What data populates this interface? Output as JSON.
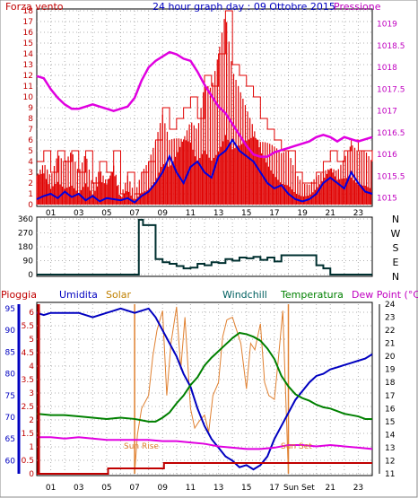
{
  "header": {
    "title": "24 hour graph day : 09 Ottobre 2015",
    "left_label": "Forza vento",
    "right_label": "Pressione"
  },
  "colors": {
    "wind": "#e00000",
    "gust": "#e00000",
    "wind_avg": "#0000e0",
    "pressure": "#e000e0",
    "direction": "#003030",
    "humidity": "#0000c0",
    "solar": "#e08030",
    "windchill": "#006060",
    "temperature": "#008000",
    "dew_point": "#e000e0",
    "rain": "#c00000",
    "axis_red": "#c00000",
    "axis_blue": "#0000c0",
    "axis_magenta": "#c000c0",
    "sun_marker": "#e08030"
  },
  "hours": [
    "01",
    "03",
    "05",
    "07",
    "09",
    "11",
    "13",
    "15",
    "17",
    "19",
    "21",
    "23"
  ],
  "chart_data": [
    {
      "type": "line",
      "panel": "wind_pressure",
      "x_range": [
        0,
        24
      ],
      "left_axis": {
        "label": "Forza vento",
        "ticks": [
          "0",
          "1",
          "2",
          "3",
          "4",
          "5",
          "6",
          "7",
          "8",
          "9",
          "10",
          "11",
          "12",
          "13",
          "14",
          "15",
          "16",
          "17",
          "18"
        ],
        "ylim": [
          0,
          18
        ]
      },
      "right_axis": {
        "label": "Pressione",
        "ticks": [
          "1015",
          "1015.5",
          "1016",
          "1016.5",
          "1017",
          "1017.5",
          "1018",
          "1018.5",
          "1019"
        ],
        "ylim": [
          1014.85,
          1019.3
        ]
      },
      "series": [
        {
          "key": "pressure",
          "x": [
            0,
            0.5,
            1,
            1.5,
            2,
            2.5,
            3,
            3.5,
            4,
            4.5,
            5,
            5.5,
            6,
            6.5,
            7,
            7.5,
            8,
            8.5,
            9,
            9.5,
            10,
            10.5,
            11,
            11.5,
            12,
            12.5,
            13,
            13.5,
            14,
            14.5,
            15,
            15.5,
            16,
            16.5,
            17,
            17.5,
            18,
            18.5,
            19,
            19.5,
            20,
            20.5,
            21,
            21.5,
            22,
            22.5,
            23,
            23.5,
            24
          ],
          "values": [
            1017.8,
            1017.75,
            1017.5,
            1017.3,
            1017.15,
            1017.05,
            1017.05,
            1017.1,
            1017.15,
            1017.1,
            1017.05,
            1017.0,
            1017.05,
            1017.1,
            1017.3,
            1017.7,
            1018.0,
            1018.15,
            1018.25,
            1018.35,
            1018.3,
            1018.2,
            1018.15,
            1017.9,
            1017.6,
            1017.35,
            1017.1,
            1016.95,
            1016.7,
            1016.45,
            1016.2,
            1016.0,
            1015.95,
            1015.95,
            1016.05,
            1016.1,
            1016.15,
            1016.2,
            1016.25,
            1016.3,
            1016.4,
            1016.45,
            1016.4,
            1016.3,
            1016.4,
            1016.35,
            1016.3,
            1016.35,
            1016.4
          ]
        },
        {
          "key": "wind_avg",
          "x": [
            0,
            0.5,
            1,
            1.5,
            2,
            2.5,
            3,
            3.5,
            4,
            4.5,
            5,
            5.5,
            6,
            6.5,
            7,
            7.5,
            8,
            8.5,
            9,
            9.5,
            10,
            10.5,
            11,
            11.5,
            12,
            12.5,
            13,
            13.5,
            14,
            14.5,
            15,
            15.5,
            16,
            16.5,
            17,
            17.5,
            18,
            18.5,
            19,
            19.5,
            20,
            20.5,
            21,
            21.5,
            22,
            22.5,
            23,
            23.5,
            24
          ],
          "values": [
            0.5,
            0.8,
            1,
            0.6,
            1.2,
            0.7,
            1,
            0.4,
            0.8,
            0.3,
            0.6,
            0.5,
            0.4,
            0.6,
            0.2,
            0.8,
            1.2,
            2,
            3,
            4.5,
            3,
            2,
            3.5,
            4,
            3,
            2.5,
            4.5,
            5,
            6,
            5,
            4.5,
            4,
            3,
            2,
            1.5,
            1.8,
            1,
            0.5,
            0.3,
            0.5,
            1,
            2,
            2.5,
            2,
            1.5,
            3,
            2,
            1.2,
            1
          ]
        },
        {
          "key": "wind_gust",
          "x": [
            0,
            0.5,
            1,
            1.5,
            2,
            2.5,
            3,
            3.5,
            4,
            4.5,
            5,
            5.5,
            6,
            6.5,
            7,
            7.5,
            8,
            8.5,
            9,
            9.5,
            10,
            10.5,
            11,
            11.5,
            12,
            12.5,
            13,
            13.5,
            14,
            14.5,
            15,
            15.5,
            16,
            16.5,
            17,
            17.5,
            18,
            18.5,
            19,
            19.5,
            20,
            20.5,
            21,
            21.5,
            22,
            22.5,
            23,
            23.5,
            24
          ],
          "values": [
            4,
            5,
            3,
            5,
            4,
            5,
            3,
            5,
            2,
            4,
            3,
            5,
            1,
            3,
            1,
            3,
            4,
            6,
            9,
            7,
            8,
            9,
            10,
            8,
            12,
            11,
            14,
            18,
            13,
            12,
            11,
            10,
            8,
            7,
            6,
            5,
            5,
            3,
            2,
            2,
            3,
            4,
            5,
            4,
            5,
            6,
            5,
            5,
            4
          ]
        }
      ]
    },
    {
      "type": "line",
      "panel": "wind_direction",
      "x_range": [
        0,
        24
      ],
      "left_axis": {
        "ticks": [
          "0",
          "90",
          "180",
          "270",
          "360"
        ],
        "ylim": [
          0,
          360
        ]
      },
      "right_axis": {
        "ticks": [
          "N",
          "W",
          "S",
          "E",
          "N"
        ]
      },
      "series": [
        {
          "key": "direction",
          "x": [
            0,
            7,
            7.3,
            7.6,
            8,
            8.5,
            9,
            9.5,
            10,
            10.5,
            11,
            11.5,
            12,
            12.5,
            13,
            13.5,
            14,
            14.5,
            15,
            15.5,
            16,
            16.5,
            17,
            17.5,
            18,
            18.5,
            19,
            19.5,
            20,
            20.5,
            21,
            24
          ],
          "values": [
            0,
            0,
            355,
            320,
            320,
            100,
            80,
            70,
            55,
            40,
            45,
            70,
            60,
            80,
            75,
            100,
            90,
            110,
            105,
            115,
            95,
            110,
            85,
            125,
            125,
            125,
            125,
            125,
            60,
            40,
            0,
            0
          ]
        }
      ]
    },
    {
      "type": "line",
      "panel": "thermo_hygro",
      "x_range": [
        0,
        24
      ],
      "labels": {
        "rain": "Pioggia",
        "humidity": "Umidita",
        "solar": "Solar",
        "windchill": "Windchill",
        "temperature": "Temperatura",
        "dew_point": "Dew Point (°C)"
      },
      "rain_axis": {
        "ticks": [
          "0",
          "0.5",
          "1",
          "1.5",
          "2",
          "2.5",
          "3",
          "3.5",
          "4",
          "4.5",
          "5",
          "5.5",
          "6"
        ],
        "ylim": [
          0,
          6.3
        ]
      },
      "humidity_axis": {
        "ticks": [
          "60",
          "65",
          "70",
          "75",
          "80",
          "85",
          "90",
          "95"
        ],
        "ylim": [
          57,
          96
        ]
      },
      "temp_axis": {
        "ticks": [
          "11",
          "12",
          "13",
          "14",
          "15",
          "16",
          "17",
          "18",
          "19",
          "20",
          "21",
          "22",
          "23",
          "24"
        ],
        "ylim": [
          11,
          24
        ]
      },
      "markers": {
        "sunrise": "Sun Rise",
        "sunset": "Sun Set",
        "sunset_axis": "Sun Set"
      },
      "series": [
        {
          "key": "humidity",
          "x": [
            0,
            0.5,
            1,
            2,
            3,
            4,
            5,
            6,
            7,
            8,
            8.5,
            9,
            9.5,
            10,
            10.5,
            11,
            11.5,
            12,
            12.5,
            13,
            13.5,
            14,
            14.5,
            15,
            15.5,
            16,
            16.5,
            17,
            17.5,
            18,
            18.5,
            19,
            19.5,
            20,
            20.5,
            21,
            21.5,
            22,
            22.5,
            23,
            23.5,
            24
          ],
          "values": [
            94,
            93.5,
            94,
            94,
            94,
            93,
            94,
            95,
            94,
            95,
            93,
            90,
            87,
            84,
            80,
            77,
            72,
            68,
            65,
            63,
            61,
            60,
            58.5,
            59,
            58,
            59,
            61,
            65,
            68,
            71,
            74,
            76,
            78,
            79.5,
            80,
            81,
            81.5,
            82,
            82.5,
            83,
            83.5,
            84.5
          ]
        },
        {
          "key": "temperature",
          "x": [
            0,
            1,
            2,
            3,
            4,
            5,
            6,
            7,
            7.5,
            8,
            8.5,
            9,
            9.5,
            10,
            10.5,
            11,
            11.5,
            12,
            12.5,
            13,
            13.5,
            14,
            14.5,
            15,
            15.5,
            16,
            16.5,
            17,
            17.5,
            18,
            18.5,
            19,
            19.5,
            20,
            20.5,
            21,
            21.5,
            22,
            22.5,
            23,
            23.5,
            24
          ],
          "values": [
            15.6,
            15.5,
            15.5,
            15.4,
            15.3,
            15.2,
            15.3,
            15.2,
            15.1,
            15.0,
            15.0,
            15.3,
            15.7,
            16.4,
            17.0,
            17.8,
            18.4,
            19.3,
            19.9,
            20.4,
            20.9,
            21.4,
            21.8,
            21.7,
            21.5,
            21.2,
            20.6,
            19.8,
            18.5,
            17.7,
            17.1,
            16.8,
            16.6,
            16.3,
            16.1,
            16.0,
            15.8,
            15.6,
            15.5,
            15.4,
            15.2,
            15.2
          ]
        },
        {
          "key": "dew_point",
          "x": [
            0,
            1,
            2,
            3,
            4,
            5,
            6,
            7,
            8,
            9,
            10,
            11,
            12,
            13,
            14,
            15,
            16,
            17,
            18,
            19,
            20,
            21,
            22,
            23,
            24
          ],
          "values": [
            13.8,
            13.8,
            13.7,
            13.8,
            13.7,
            13.6,
            13.6,
            13.6,
            13.6,
            13.5,
            13.5,
            13.4,
            13.3,
            13.1,
            13.0,
            12.9,
            12.9,
            13.0,
            13.2,
            13.2,
            13.1,
            13.2,
            13.1,
            13.0,
            12.9
          ]
        },
        {
          "key": "windchill",
          "x": [
            0,
            1,
            2,
            3,
            4,
            5,
            6,
            7,
            8,
            9,
            10,
            11,
            12,
            13,
            14,
            15,
            16,
            17,
            18,
            19,
            20,
            21,
            22,
            23,
            24
          ],
          "values": [
            15.6,
            15.5,
            15.5,
            15.4,
            15.3,
            15.2,
            15.3,
            15.2,
            15.0,
            15.3,
            16.4,
            17.8,
            19.3,
            20.4,
            21.4,
            21.7,
            21.2,
            19.8,
            17.7,
            16.8,
            16.3,
            16.0,
            15.6,
            15.4,
            15.2
          ]
        },
        {
          "key": "solar",
          "x": [
            7,
            7.2,
            7.5,
            8,
            8.3,
            8.6,
            9,
            9.3,
            9.6,
            10,
            10.3,
            10.6,
            11,
            11.3,
            11.6,
            12,
            12.3,
            12.6,
            13,
            13.3,
            13.6,
            14,
            14.3,
            14.6,
            15,
            15.3,
            15.6,
            16,
            16.3,
            16.6,
            17,
            17.3,
            17.6,
            18
          ],
          "values": [
            11,
            14,
            16,
            17,
            20,
            22,
            23.5,
            17,
            21,
            23.8,
            19,
            23,
            16,
            14.5,
            15,
            15.5,
            14.2,
            17,
            18,
            21.5,
            22.8,
            23,
            22,
            21,
            17.5,
            21,
            20.5,
            22.5,
            18,
            17,
            16.7,
            20,
            23.5,
            11
          ]
        },
        {
          "key": "rain",
          "x": [
            0,
            5,
            5.1,
            9,
            9.1,
            21,
            24
          ],
          "values": [
            0,
            0,
            0.2,
            0.2,
            0.4,
            0.4,
            0.4
          ]
        }
      ]
    }
  ]
}
